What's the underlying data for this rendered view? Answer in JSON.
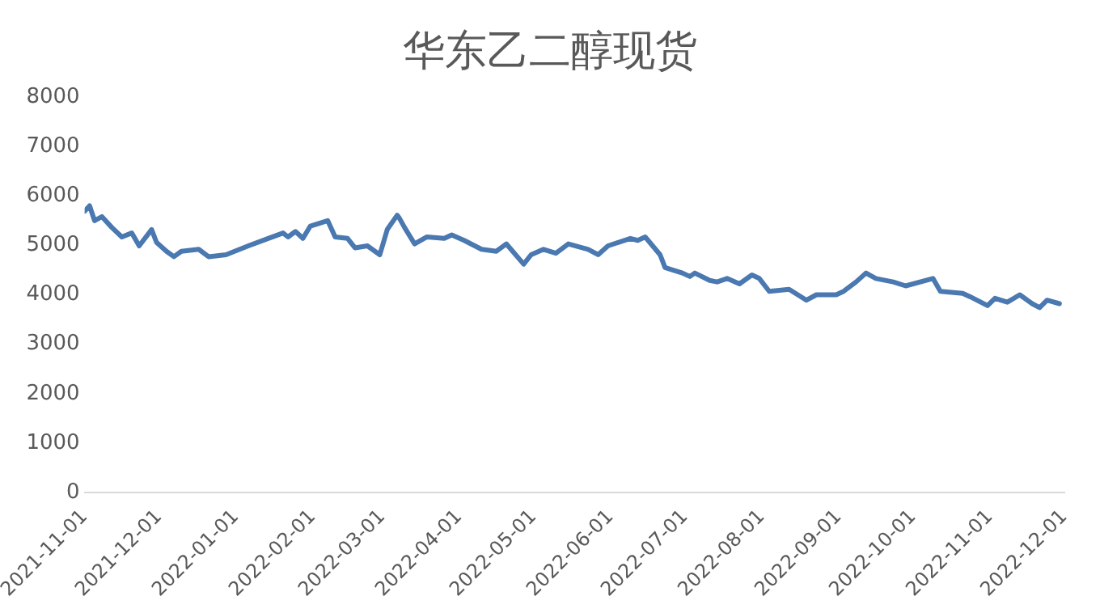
{
  "chart_data": {
    "type": "line",
    "title": "华东乙二醇现货",
    "x": [
      "2021-11-01",
      "2021-11-03",
      "2021-11-05",
      "2021-11-08",
      "2021-11-12",
      "2021-11-16",
      "2021-11-20",
      "2021-11-23",
      "2021-11-28",
      "2021-11-30",
      "2021-12-04",
      "2021-12-07",
      "2021-12-10",
      "2021-12-17",
      "2021-12-21",
      "2021-12-28",
      "2022-01-06",
      "2022-01-14",
      "2022-01-20",
      "2022-01-22",
      "2022-01-25",
      "2022-01-28",
      "2022-01-31",
      "2022-02-07",
      "2022-02-10",
      "2022-02-15",
      "2022-02-18",
      "2022-02-23",
      "2022-02-28",
      "2022-03-03",
      "2022-03-07",
      "2022-03-08",
      "2022-03-10",
      "2022-03-14",
      "2022-03-19",
      "2022-03-26",
      "2022-03-29",
      "2022-04-03",
      "2022-04-10",
      "2022-04-16",
      "2022-04-20",
      "2022-04-27",
      "2022-04-30",
      "2022-05-05",
      "2022-05-10",
      "2022-05-15",
      "2022-05-23",
      "2022-05-27",
      "2022-05-31",
      "2022-06-09",
      "2022-06-12",
      "2022-06-15",
      "2022-06-18",
      "2022-06-21",
      "2022-06-23",
      "2022-06-30",
      "2022-07-03",
      "2022-07-05",
      "2022-07-11",
      "2022-07-14",
      "2022-07-18",
      "2022-07-23",
      "2022-07-28",
      "2022-07-31",
      "2022-08-04",
      "2022-08-12",
      "2022-08-19",
      "2022-08-23",
      "2022-08-31",
      "2022-09-03",
      "2022-09-08",
      "2022-09-12",
      "2022-09-16",
      "2022-09-23",
      "2022-09-28",
      "2022-10-09",
      "2022-10-12",
      "2022-10-21",
      "2022-10-24",
      "2022-10-31",
      "2022-11-03",
      "2022-11-08",
      "2022-11-13",
      "2022-11-18",
      "2022-11-21",
      "2022-11-24",
      "2022-11-29"
    ],
    "series": [
      {
        "color": "#4a78b0",
        "values": [
          5690,
          5800,
          5500,
          5580,
          5360,
          5170,
          5250,
          4990,
          5320,
          5060,
          4880,
          4770,
          4880,
          4920,
          4770,
          4810,
          4990,
          5140,
          5250,
          5170,
          5280,
          5140,
          5390,
          5500,
          5170,
          5140,
          4950,
          4990,
          4810,
          5320,
          5610,
          5540,
          5360,
          5030,
          5170,
          5140,
          5210,
          5100,
          4920,
          4880,
          5030,
          4620,
          4810,
          4920,
          4840,
          5030,
          4920,
          4810,
          4990,
          5140,
          5100,
          5170,
          4990,
          4810,
          4550,
          4440,
          4370,
          4440,
          4290,
          4260,
          4330,
          4220,
          4400,
          4330,
          4070,
          4110,
          3890,
          4000,
          4000,
          4070,
          4260,
          4440,
          4330,
          4260,
          4180,
          4330,
          4070,
          4030,
          3960,
          3780,
          3930,
          3850,
          4000,
          3820,
          3740,
          3890,
          3820
        ]
      }
    ],
    "xlim": [
      "2021-11-01",
      "2022-12-01"
    ],
    "xticks": [
      "2021-11-01",
      "2021-12-01",
      "2022-01-01",
      "2022-02-01",
      "2022-03-01",
      "2022-04-01",
      "2022-05-01",
      "2022-06-01",
      "2022-07-01",
      "2022-08-01",
      "2022-09-01",
      "2022-10-01",
      "2022-11-01",
      "2022-12-01"
    ],
    "ylim": [
      0,
      8000
    ],
    "yticks": [
      0,
      1000,
      2000,
      3000,
      4000,
      5000,
      6000,
      7000,
      8000
    ],
    "grid": false,
    "legend": false,
    "marker": "none",
    "line_style": "solid"
  }
}
